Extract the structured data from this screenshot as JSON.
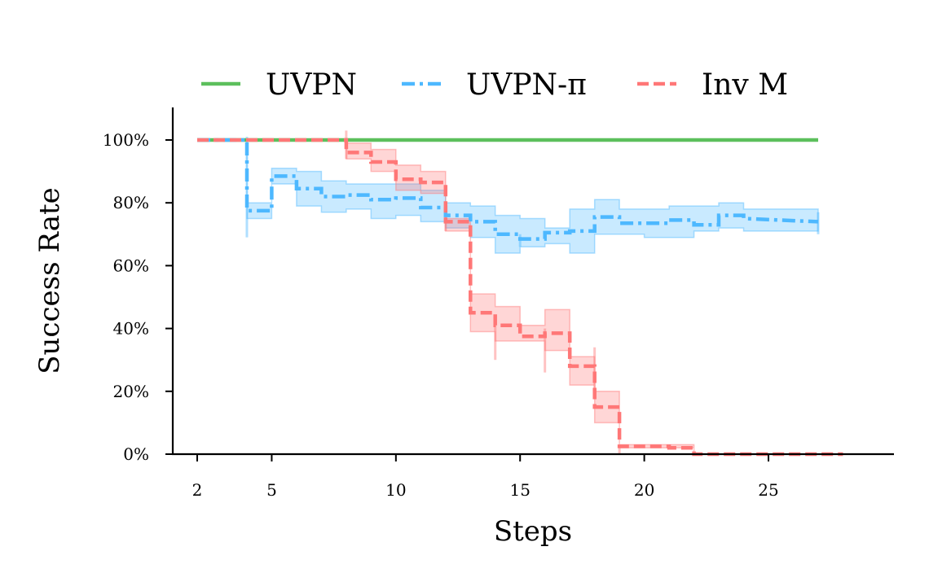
{
  "chart_data": {
    "type": "line",
    "xlabel": "Steps",
    "ylabel": "Success Rate",
    "xlim": [
      1,
      29
    ],
    "ylim": [
      0,
      100
    ],
    "x_ticks": [
      2,
      5,
      10,
      15,
      20,
      25
    ],
    "y_ticks": [
      0,
      20,
      40,
      60,
      80,
      100
    ],
    "y_tick_labels": [
      "0%",
      "20%",
      "40%",
      "60%",
      "80%",
      "100%"
    ],
    "legend_position": "top",
    "grid": false,
    "series": [
      {
        "name": "UVPN",
        "color": "#5cbf5c",
        "dash": "solid",
        "x": [
          2,
          27
        ],
        "y": [
          100,
          100
        ]
      },
      {
        "name": "UVPN-π",
        "color": "#4db8ff",
        "dash": "dashdot",
        "x": [
          2,
          4,
          4,
          5,
          5,
          6,
          6,
          7,
          7,
          8,
          8,
          9,
          9,
          10,
          10,
          11,
          11,
          12,
          12,
          13,
          13,
          14,
          14,
          15,
          15,
          16,
          16,
          17,
          17,
          18,
          18,
          19,
          19,
          20,
          20,
          21,
          21,
          22,
          22,
          23,
          23,
          24,
          24,
          27
        ],
        "y": [
          100,
          100,
          77.5,
          77.5,
          88.5,
          88.5,
          84.5,
          84.5,
          82,
          82,
          82.5,
          82.5,
          81,
          81,
          81.5,
          81.5,
          78.5,
          78.5,
          76,
          76,
          74,
          74,
          70,
          70,
          68.5,
          68.5,
          70.5,
          70.5,
          71,
          71,
          75.5,
          75.5,
          73.5,
          73.5,
          73.5,
          73.5,
          74.5,
          74.5,
          73,
          73,
          76,
          76,
          75,
          74
        ],
        "band_lower": [
          100,
          100,
          75,
          75,
          86,
          86,
          79,
          79,
          77,
          77,
          78,
          78,
          75,
          75,
          76,
          76,
          74,
          74,
          72,
          72,
          69,
          69,
          64,
          64,
          66,
          66,
          67,
          67,
          64,
          64,
          70,
          70,
          70,
          70,
          69,
          69,
          69,
          69,
          71,
          71,
          72,
          72,
          71,
          71
        ],
        "band_upper": [
          100,
          100,
          80,
          80,
          91,
          91,
          90,
          90,
          87,
          87,
          86,
          86,
          86,
          86,
          86,
          86,
          84,
          84,
          80,
          80,
          79,
          79,
          76,
          76,
          75,
          75,
          72,
          72,
          78,
          78,
          81,
          81,
          78,
          78,
          78,
          78,
          79,
          79,
          79,
          79,
          80,
          80,
          78,
          78
        ]
      },
      {
        "name": "Inv M",
        "color": "#ff7777",
        "dash": "dashed",
        "x": [
          2,
          8,
          8,
          9,
          9,
          10,
          10,
          11,
          11,
          12,
          12,
          13,
          13,
          14,
          14,
          15,
          15,
          16,
          16,
          17,
          17,
          18,
          18,
          19,
          19,
          20,
          20,
          21,
          21,
          22,
          22,
          28
        ],
        "y": [
          100,
          100,
          96,
          96,
          93,
          93,
          87.5,
          87.5,
          86.5,
          86.5,
          74,
          74,
          45,
          45,
          41,
          41,
          37.5,
          37.5,
          38.5,
          38.5,
          28,
          28,
          15,
          15,
          2.5,
          2.5,
          2.5,
          2.5,
          2,
          2,
          0,
          0
        ],
        "band_lower": [
          100,
          100,
          94,
          94,
          90,
          90,
          84,
          84,
          83,
          83,
          71,
          71,
          39,
          39,
          36,
          36,
          36,
          36,
          33,
          33,
          22,
          22,
          10,
          10,
          2,
          2,
          2,
          2,
          2,
          2,
          0,
          0
        ],
        "band_upper": [
          100,
          100,
          99,
          99,
          97,
          97,
          92,
          92,
          90,
          90,
          75,
          75,
          51,
          51,
          47,
          47,
          41,
          41,
          46,
          46,
          31,
          31,
          20,
          20,
          3,
          3,
          3,
          3,
          3,
          3,
          0,
          0
        ],
        "error_bars": [
          {
            "x": 8,
            "low": 94,
            "high": 103
          },
          {
            "x": 12,
            "low": 71,
            "high": 78
          },
          {
            "x": 14,
            "low": 30,
            "high": 42
          },
          {
            "x": 16,
            "low": 26,
            "high": 40
          },
          {
            "x": 18,
            "low": 21,
            "high": 34
          },
          {
            "x": 19,
            "low": 0,
            "high": 3
          }
        ]
      }
    ],
    "error_bars_pi": [
      {
        "x": 4,
        "low": 69,
        "high": 101
      },
      {
        "x": 15,
        "low": 66,
        "high": 70
      },
      {
        "x": 27,
        "low": 70,
        "high": 77
      }
    ]
  }
}
